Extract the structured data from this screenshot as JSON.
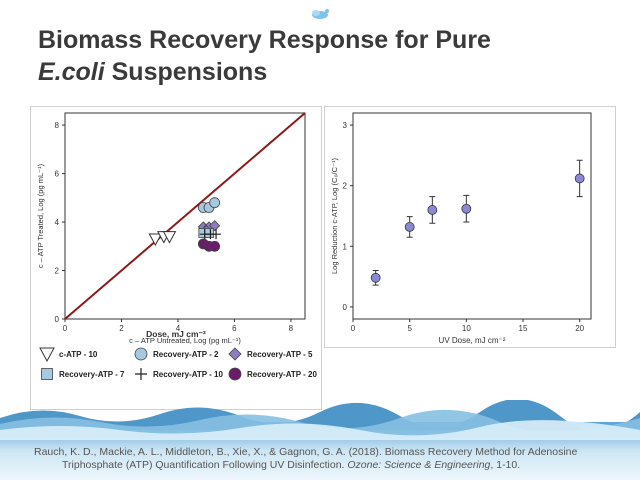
{
  "slide": {
    "title_line1": "Biomass Recovery Response for Pure",
    "title_italic": "E.coli",
    "title_rest": " Suspensions"
  },
  "citation": {
    "part1": "Rauch, K. D., Mackie, A. L., Middleton, B., Xie, X., & Gagnon, G. A. (2018). Biomass Recovery Method for Adenosine",
    "part2": "Triphosphate (ATP) Quantification Following UV Disinfection. ",
    "journal": "Ozone: Science & Engineering",
    "part3": ", 1-10."
  },
  "colors": {
    "title": "#3a3a3a",
    "one_to_one_line": "#8b1a1a",
    "recovery_2": "#a6c8e0",
    "recovery_5": "#8e7cc3",
    "recovery_20": "#6a1b6a",
    "uv_points": "#8c88d8",
    "water": "#7fb6d8"
  },
  "chart_data": [
    {
      "type": "scatter",
      "xlabel": "c – ATP Untreated, Log (pg mL⁻¹)",
      "ylabel": "c – ATP Treated, Log (pg mL⁻¹)",
      "xlim": [
        0,
        8.5
      ],
      "ylim": [
        0,
        8.5
      ],
      "x_ticks": [
        0,
        2,
        4,
        6,
        8
      ],
      "y_ticks": [
        0,
        2,
        4,
        6,
        8
      ],
      "reference_line": "1:1",
      "legend_title": "Dose, mJ cm⁻²",
      "legend_position": "bottom",
      "series": [
        {
          "name": "c-ATP - 10",
          "marker": "triangle-down",
          "points": [
            [
              3.2,
              3.3
            ],
            [
              3.5,
              3.4
            ],
            [
              3.7,
              3.4
            ]
          ]
        },
        {
          "name": "Recovery-ATP - 2",
          "marker": "circle",
          "color": "#a6c8e0",
          "points": [
            [
              4.9,
              4.6
            ],
            [
              5.1,
              4.6
            ],
            [
              5.3,
              4.8
            ]
          ]
        },
        {
          "name": "Recovery-ATP - 5",
          "marker": "diamond",
          "color": "#8e7cc3",
          "points": [
            [
              4.9,
              3.8
            ],
            [
              5.1,
              3.8
            ],
            [
              5.3,
              3.85
            ],
            [
              5.0,
              3.65
            ]
          ]
        },
        {
          "name": "Recovery-ATP - 7",
          "marker": "square",
          "color": "#a6c8e0",
          "points": [
            [
              4.9,
              3.55
            ],
            [
              5.1,
              3.55
            ]
          ]
        },
        {
          "name": "Recovery-ATP - 10",
          "marker": "plus",
          "points": [
            [
              4.95,
              3.5
            ],
            [
              5.15,
              3.5
            ],
            [
              5.35,
              3.5
            ]
          ]
        },
        {
          "name": "Recovery-ATP - 20",
          "marker": "circle",
          "color": "#6a1b6a",
          "points": [
            [
              4.9,
              3.1
            ],
            [
              5.1,
              3.0
            ],
            [
              5.3,
              3.0
            ]
          ]
        }
      ]
    },
    {
      "type": "scatter",
      "xlabel": "UV Dose, mJ cm⁻²",
      "ylabel": "Log Reduction c-ATP, Log (C₀/C⁻¹)",
      "xlim": [
        0,
        21
      ],
      "ylim": [
        -0.2,
        3.2
      ],
      "x_ticks": [
        0,
        5,
        10,
        15,
        20
      ],
      "y_ticks": [
        0,
        1,
        2,
        3
      ],
      "points": [
        {
          "x": 2,
          "y": 0.48,
          "err": 0.12
        },
        {
          "x": 5,
          "y": 1.32,
          "err": 0.17
        },
        {
          "x": 7,
          "y": 1.6,
          "err": 0.22
        },
        {
          "x": 10,
          "y": 1.62,
          "err": 0.22
        },
        {
          "x": 20,
          "y": 2.12,
          "err": 0.3
        }
      ]
    }
  ]
}
